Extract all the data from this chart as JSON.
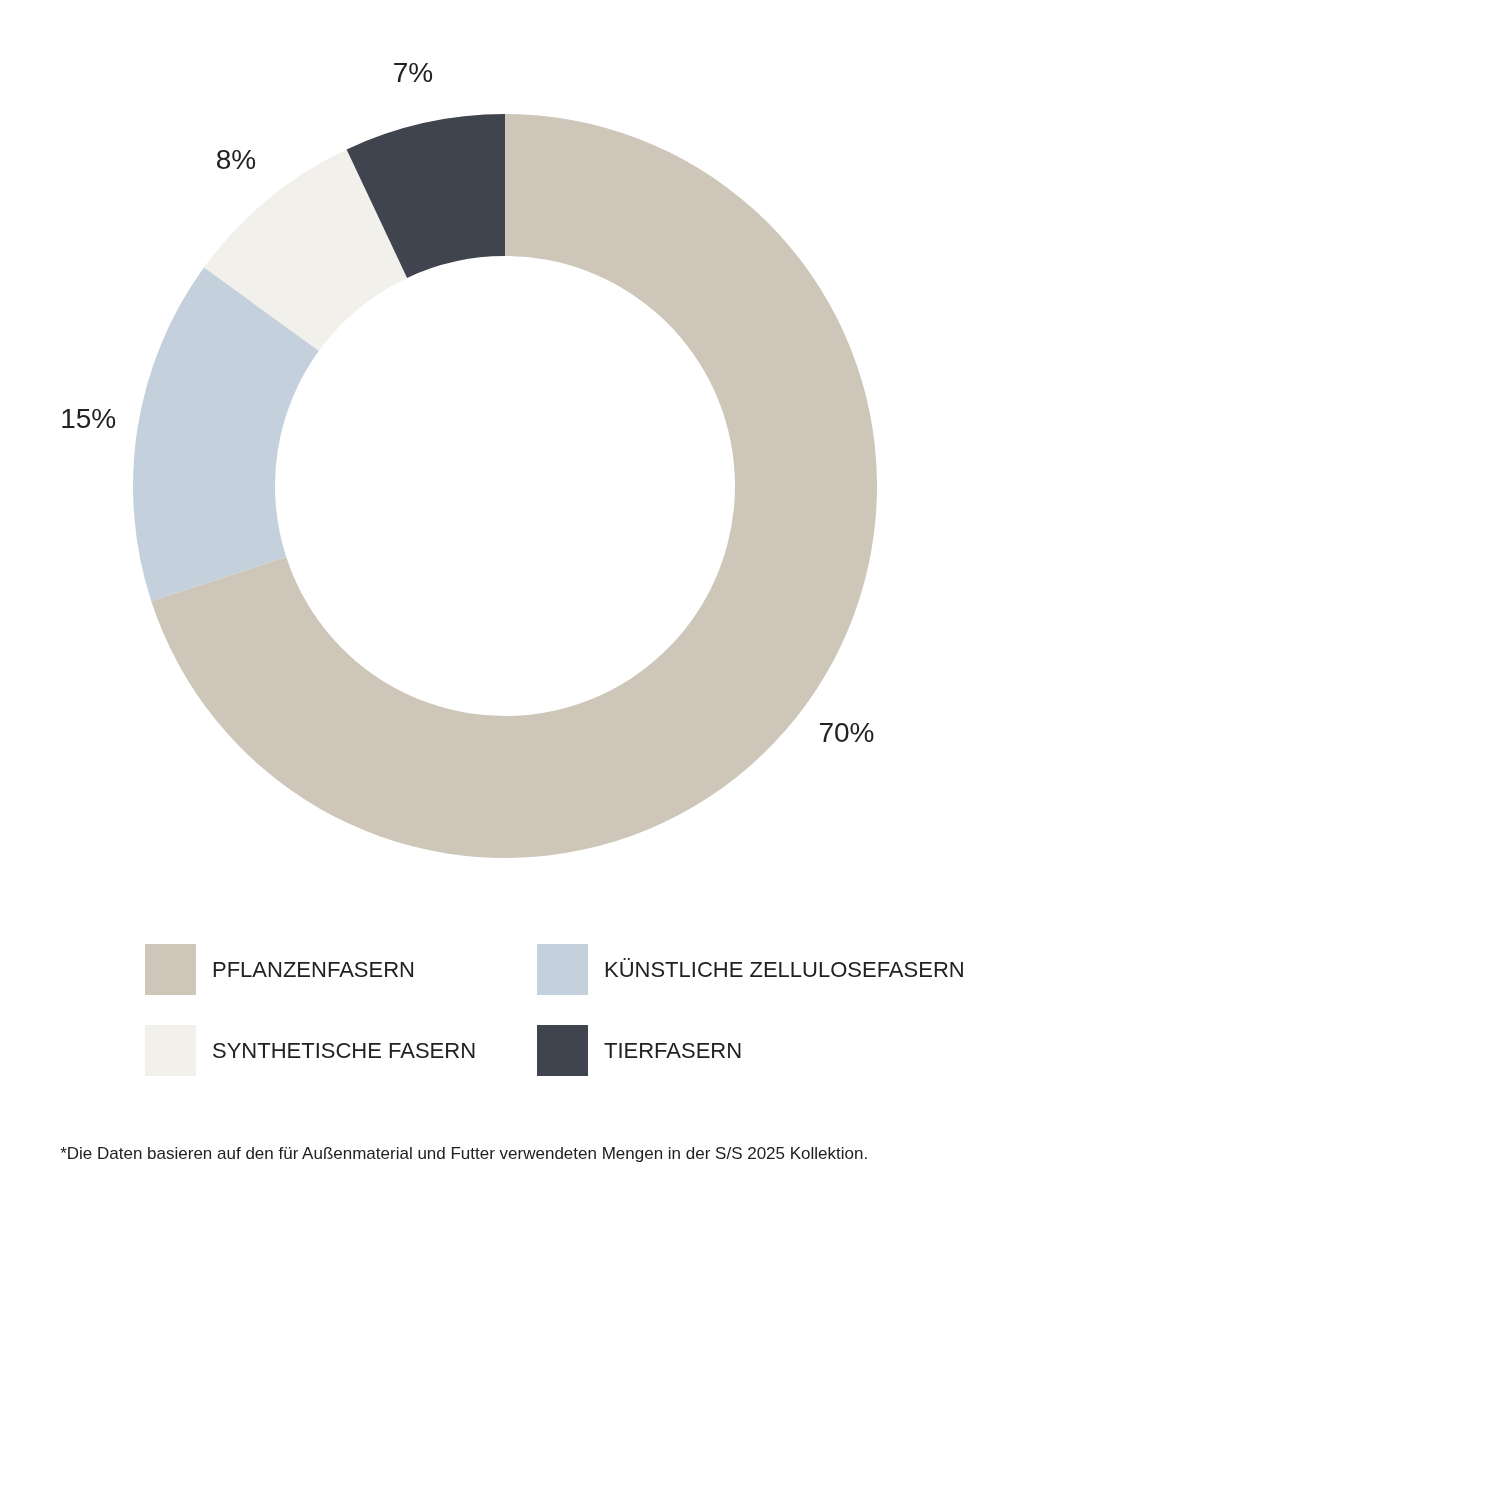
{
  "chart_data": {
    "type": "donut",
    "categories": [
      "PFLANZENFASERN",
      "KÜNSTLICHE ZELLULOSEFASERN",
      "SYNTHETISCHE FASERN",
      "TIERFASERN"
    ],
    "values": [
      70,
      15,
      8,
      7
    ],
    "value_labels": [
      "70%",
      "15%",
      "8%",
      "7%"
    ],
    "colors": [
      "#cdc6b9",
      "#c4d0dc",
      "#f2f0eb",
      "#3f444e"
    ],
    "legend": "bottom",
    "annotations": [
      "*Die Daten basieren auf den für Außenmaterial und Futter verwendeten Mengen in der S/S 2025 Kollektion."
    ]
  }
}
